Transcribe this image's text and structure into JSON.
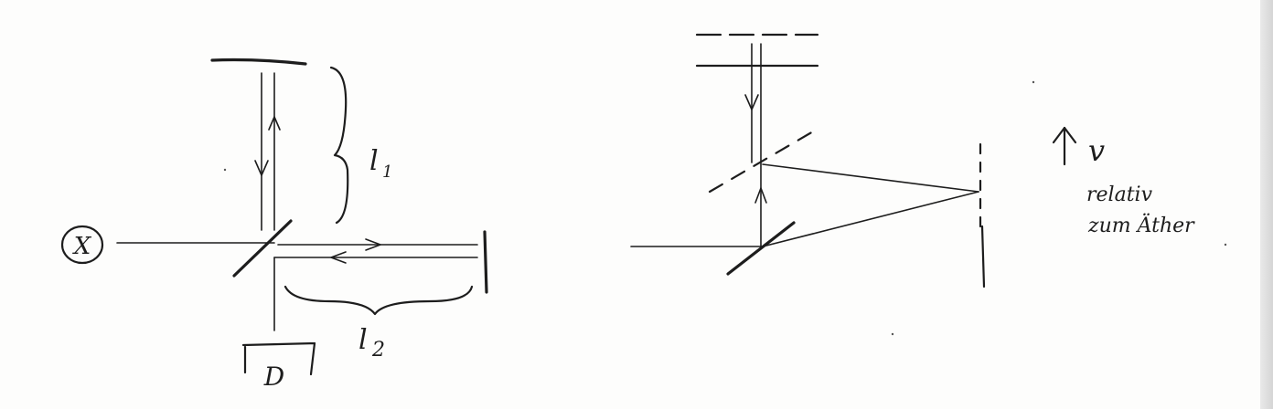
{
  "labels": {
    "source": "X",
    "arm1_length": "l",
    "arm1_index": "1",
    "arm2_length": "l",
    "arm2_index": "2",
    "detector": "D",
    "velocity": "v",
    "relative": "relativ",
    "ether": "zum Äther"
  }
}
